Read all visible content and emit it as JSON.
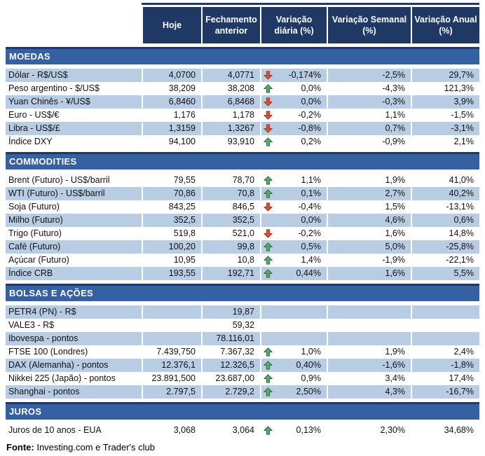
{
  "header": {
    "columns": [
      "Hoje",
      "Fechamento anterior",
      "Variação diária (%)",
      "Variação Semanal (%)",
      "Variação Anual (%)"
    ]
  },
  "sections": [
    {
      "title": "MOEDAS",
      "rows": [
        {
          "label": "Dólar - R$/US$",
          "hoje": "4,0700",
          "fechamento": "4,0771",
          "arrow": "down",
          "diaria": "-0,174%",
          "semanal": "-2,5%",
          "anual": "29,7%"
        },
        {
          "label": "Peso argentino - $/US$",
          "hoje": "38,209",
          "fechamento": "38,208",
          "arrow": "up",
          "diaria": "0,0%",
          "semanal": "-4,3%",
          "anual": "121,3%"
        },
        {
          "label": "Yuan Chinês - ¥/US$",
          "hoje": "6,8460",
          "fechamento": "6,8468",
          "arrow": "down",
          "diaria": "0,0%",
          "semanal": "-0,3%",
          "anual": "3,9%"
        },
        {
          "label": "Euro - US$/€",
          "hoje": "1,176",
          "fechamento": "1,178",
          "arrow": "down",
          "diaria": "-0,2%",
          "semanal": "1,1%",
          "anual": "-1,5%"
        },
        {
          "label": "Libra - US$/£",
          "hoje": "1,3159",
          "fechamento": "1,3267",
          "arrow": "down",
          "diaria": "-0,8%",
          "semanal": "0,7%",
          "anual": "-3,1%"
        },
        {
          "label": "Índice DXY",
          "hoje": "94,100",
          "fechamento": "93,910",
          "arrow": "up",
          "diaria": "0,2%",
          "semanal": "-0,9%",
          "anual": "2,1%"
        }
      ]
    },
    {
      "title": "COMMODITIES",
      "rows": [
        {
          "label": "Brent (Futuro) - US$/barril",
          "hoje": "79,55",
          "fechamento": "78,70",
          "arrow": "up",
          "diaria": "1,1%",
          "semanal": "1,9%",
          "anual": "41,0%"
        },
        {
          "label": "WTI (Futuro) - US$/barril",
          "hoje": "70,86",
          "fechamento": "70,8",
          "arrow": "up",
          "diaria": "0,1%",
          "semanal": "2,7%",
          "anual": "40,2%"
        },
        {
          "label": "Soja (Futuro)",
          "hoje": "843,25",
          "fechamento": "846,5",
          "arrow": "down",
          "diaria": "-0,4%",
          "semanal": "1,5%",
          "anual": "-13,1%"
        },
        {
          "label": "Milho (Futuro)",
          "hoje": "352,5",
          "fechamento": "352,5",
          "arrow": null,
          "diaria": "0,0%",
          "semanal": "4,6%",
          "anual": "0,6%"
        },
        {
          "label": "Trigo (Futuro)",
          "hoje": "519,8",
          "fechamento": "521,0",
          "arrow": "down",
          "diaria": "-0,2%",
          "semanal": "1,6%",
          "anual": "14,8%"
        },
        {
          "label": "Café (Futuro)",
          "hoje": "100,20",
          "fechamento": "99,8",
          "arrow": "up",
          "diaria": "0,5%",
          "semanal": "5,0%",
          "anual": "-25,8%"
        },
        {
          "label": "Açúcar (Futuro)",
          "hoje": "10,95",
          "fechamento": "10,8",
          "arrow": "up",
          "diaria": "1,4%",
          "semanal": "-1,9%",
          "anual": "-22,1%"
        },
        {
          "label": "Índice CRB",
          "hoje": "193,55",
          "fechamento": "192,71",
          "arrow": "up",
          "diaria": "0,44%",
          "semanal": "1,6%",
          "anual": "5,5%"
        }
      ]
    },
    {
      "title": "BOLSAS E AÇÕES",
      "rows": [
        {
          "label": "PETR4 (PN) - R$",
          "hoje": "",
          "fechamento": "19,87",
          "arrow": null,
          "diaria": "",
          "semanal": "",
          "anual": ""
        },
        {
          "label": "VALE3 - R$",
          "hoje": "",
          "fechamento": "59,32",
          "arrow": null,
          "diaria": "",
          "semanal": "",
          "anual": ""
        },
        {
          "label": "Ibovespa - pontos",
          "hoje": "",
          "fechamento": "78.116,01",
          "arrow": null,
          "diaria": "",
          "semanal": "",
          "anual": ""
        },
        {
          "label": "FTSE 100 (Londres)",
          "hoje": "7.439,750",
          "fechamento": "7.367,32",
          "arrow": "up",
          "diaria": "1,0%",
          "semanal": "1,9%",
          "anual": "2,4%"
        },
        {
          "label": "DAX (Alemanha) - pontos",
          "hoje": "12.376,1",
          "fechamento": "12.326,5",
          "arrow": "up",
          "diaria": "0,40%",
          "semanal": "-1,6%",
          "anual": "-1,8%"
        },
        {
          "label": "Nikkei 225 (Japão) - pontos",
          "hoje": "23.891,500",
          "fechamento": "23.687,00",
          "arrow": "up",
          "diaria": "0,9%",
          "semanal": "3,4%",
          "anual": "17,4%"
        },
        {
          "label": "Shanghai - pontos",
          "hoje": "2.797,5",
          "fechamento": "2.729,2",
          "arrow": "up",
          "diaria": "2,50%",
          "semanal": "4,3%",
          "anual": "-16,7%"
        }
      ]
    },
    {
      "title": "JUROS",
      "rows": [
        {
          "label": "Juros de 10 anos - EUA",
          "hoje": "3,068",
          "fechamento": "3,064",
          "arrow": "up",
          "diaria": "0,13%",
          "semanal": "2,30%",
          "anual": "34,68%"
        }
      ]
    }
  ],
  "footer": {
    "source_label": "Fonte:",
    "source_text": " Investing.com e Trader's club"
  },
  "colors": {
    "header_navy": "#1F3864",
    "section_bar_blue": "#3560A2",
    "row_blue": "#B8CCE4",
    "arrow_up_fill": "#5EA672",
    "arrow_up_stroke": "#2F6B3C",
    "arrow_down_fill": "#CC5240",
    "arrow_down_stroke": "#A23B21"
  },
  "chart_data": {
    "type": "table",
    "columns": [
      "",
      "Hoje",
      "Fechamento anterior",
      "Variação diária (%)",
      "Variação Semanal (%)",
      "Variação Anual (%)"
    ],
    "sections": [
      {
        "name": "MOEDAS",
        "rows": [
          [
            "Dólar - R$/US$",
            "4,0700",
            "4,0771",
            "-0,174%",
            "-2,5%",
            "29,7%"
          ],
          [
            "Peso argentino - $/US$",
            "38,209",
            "38,208",
            "0,0%",
            "-4,3%",
            "121,3%"
          ],
          [
            "Yuan Chinês - ¥/US$",
            "6,8460",
            "6,8468",
            "0,0%",
            "-0,3%",
            "3,9%"
          ],
          [
            "Euro - US$/€",
            "1,176",
            "1,178",
            "-0,2%",
            "1,1%",
            "-1,5%"
          ],
          [
            "Libra - US$/£",
            "1,3159",
            "1,3267",
            "-0,8%",
            "0,7%",
            "-3,1%"
          ],
          [
            "Índice DXY",
            "94,100",
            "93,910",
            "0,2%",
            "-0,9%",
            "2,1%"
          ]
        ]
      },
      {
        "name": "COMMODITIES",
        "rows": [
          [
            "Brent (Futuro) - US$/barril",
            "79,55",
            "78,70",
            "1,1%",
            "1,9%",
            "41,0%"
          ],
          [
            "WTI (Futuro) - US$/barril",
            "70,86",
            "70,8",
            "0,1%",
            "2,7%",
            "40,2%"
          ],
          [
            "Soja (Futuro)",
            "843,25",
            "846,5",
            "-0,4%",
            "1,5%",
            "-13,1%"
          ],
          [
            "Milho (Futuro)",
            "352,5",
            "352,5",
            "0,0%",
            "4,6%",
            "0,6%"
          ],
          [
            "Trigo (Futuro)",
            "519,8",
            "521,0",
            "-0,2%",
            "1,6%",
            "14,8%"
          ],
          [
            "Café (Futuro)",
            "100,20",
            "99,8",
            "0,5%",
            "5,0%",
            "-25,8%"
          ],
          [
            "Açúcar (Futuro)",
            "10,95",
            "10,8",
            "1,4%",
            "-1,9%",
            "-22,1%"
          ],
          [
            "Índice CRB",
            "193,55",
            "192,71",
            "0,44%",
            "1,6%",
            "5,5%"
          ]
        ]
      },
      {
        "name": "BOLSAS E AÇÕES",
        "rows": [
          [
            "PETR4 (PN) - R$",
            "",
            "19,87",
            "",
            "",
            ""
          ],
          [
            "VALE3 - R$",
            "",
            "59,32",
            "",
            "",
            ""
          ],
          [
            "Ibovespa - pontos",
            "",
            "78.116,01",
            "",
            "",
            ""
          ],
          [
            "FTSE 100 (Londres)",
            "7.439,750",
            "7.367,32",
            "1,0%",
            "1,9%",
            "2,4%"
          ],
          [
            "DAX (Alemanha) - pontos",
            "12.376,1",
            "12.326,5",
            "0,40%",
            "-1,6%",
            "-1,8%"
          ],
          [
            "Nikkei 225 (Japão) - pontos",
            "23.891,500",
            "23.687,00",
            "0,9%",
            "3,4%",
            "17,4%"
          ],
          [
            "Shanghai - pontos",
            "2.797,5",
            "2.729,2",
            "2,50%",
            "4,3%",
            "-16,7%"
          ]
        ]
      },
      {
        "name": "JUROS",
        "rows": [
          [
            "Juros de 10 anos - EUA",
            "3,068",
            "3,064",
            "0,13%",
            "2,30%",
            "34,68%"
          ]
        ]
      }
    ]
  }
}
